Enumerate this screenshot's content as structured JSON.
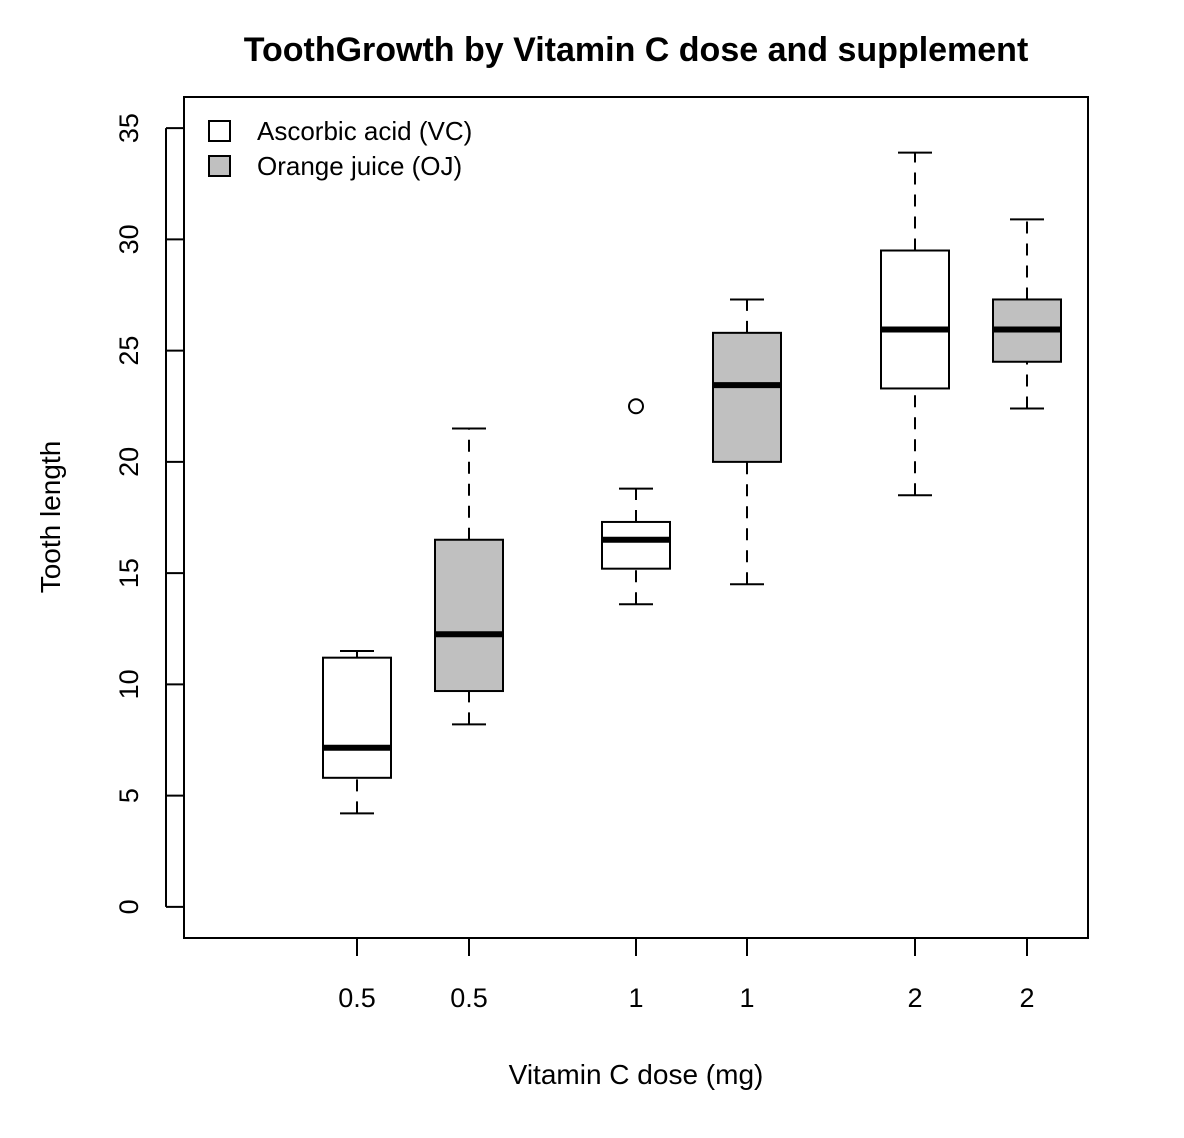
{
  "chart_data": {
    "type": "box",
    "title": "ToothGrowth by Vitamin C dose and supplement",
    "xlabel": "Vitamin C dose (mg)",
    "ylabel": "Tooth length",
    "ylim": [
      -1.4,
      36.4
    ],
    "yticks": [
      0,
      5,
      10,
      15,
      20,
      25,
      30,
      35
    ],
    "yticks_labels": [
      "0",
      "5",
      "10",
      "15",
      "20",
      "25",
      "30",
      "35"
    ],
    "xticks_labels": [
      "0.5",
      "0.5",
      "1",
      "1",
      "2",
      "2"
    ],
    "legend": {
      "position": "top-left",
      "entries": [
        {
          "label": "Ascorbic acid (VC)",
          "fill": "#ffffff"
        },
        {
          "label": "Orange juice (OJ)",
          "fill": "#c0c0c0"
        }
      ]
    },
    "boxes": [
      {
        "dose": "0.5",
        "supplement": "VC",
        "fill": "#ffffff",
        "whisker_low": 4.2,
        "q1": 5.8,
        "median": 7.15,
        "q3": 11.2,
        "whisker_high": 11.5,
        "outliers": []
      },
      {
        "dose": "0.5",
        "supplement": "OJ",
        "fill": "#c0c0c0",
        "whisker_low": 8.2,
        "q1": 9.7,
        "median": 12.25,
        "q3": 16.5,
        "whisker_high": 21.5,
        "outliers": []
      },
      {
        "dose": "1",
        "supplement": "VC",
        "fill": "#ffffff",
        "whisker_low": 13.6,
        "q1": 15.2,
        "median": 16.5,
        "q3": 17.3,
        "whisker_high": 18.8,
        "outliers": [
          22.5
        ]
      },
      {
        "dose": "1",
        "supplement": "OJ",
        "fill": "#c0c0c0",
        "whisker_low": 14.5,
        "q1": 20.0,
        "median": 23.45,
        "q3": 25.8,
        "whisker_high": 27.3,
        "outliers": []
      },
      {
        "dose": "2",
        "supplement": "VC",
        "fill": "#ffffff",
        "whisker_low": 18.5,
        "q1": 23.3,
        "median": 25.95,
        "q3": 29.5,
        "whisker_high": 33.9,
        "outliers": []
      },
      {
        "dose": "2",
        "supplement": "OJ",
        "fill": "#c0c0c0",
        "whisker_low": 22.4,
        "q1": 24.5,
        "median": 25.95,
        "q3": 27.3,
        "whisker_high": 30.9,
        "outliers": []
      }
    ]
  }
}
